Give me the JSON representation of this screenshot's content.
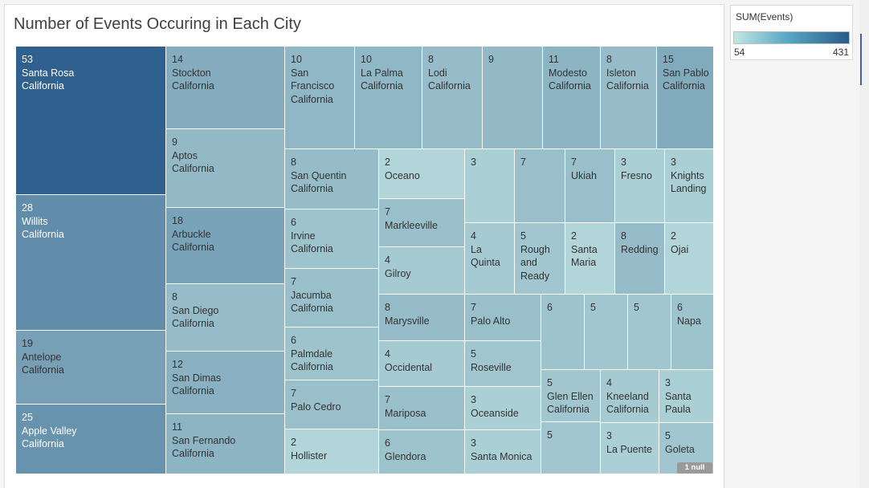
{
  "chart_data": {
    "type": "treemap",
    "title": "Number of Events Occuring in Each City",
    "legend": {
      "title": "SUM(Events)",
      "min_label": "54",
      "max_label": "431",
      "min": 54,
      "max": 431,
      "color_low": "#c4e6e4",
      "color_high": "#2b5c8a",
      "placement": "top-right"
    },
    "null_badge": "1 null",
    "tiles": [
      {
        "value": 53,
        "city": "Santa Rosa",
        "state": "California"
      },
      {
        "value": 28,
        "city": "Willits",
        "state": "California"
      },
      {
        "value": 19,
        "city": "Antelope",
        "state": "California"
      },
      {
        "value": 25,
        "city": "Apple Valley",
        "state": "California"
      },
      {
        "value": 14,
        "city": "Stockton",
        "state": "California"
      },
      {
        "value": 9,
        "city": "Aptos",
        "state": "California"
      },
      {
        "value": 18,
        "city": "Arbuckle",
        "state": "California"
      },
      {
        "value": 8,
        "city": "San Diego",
        "state": "California"
      },
      {
        "value": 12,
        "city": "San Dimas",
        "state": "California"
      },
      {
        "value": 11,
        "city": "San Fernando",
        "state": "California"
      },
      {
        "value": 10,
        "city": "San Francisco",
        "state": "California"
      },
      {
        "value": 10,
        "city": "La Palma",
        "state": "California"
      },
      {
        "value": 8,
        "city": "Lodi",
        "state": "California"
      },
      {
        "value": 9,
        "city": "",
        "state": ""
      },
      {
        "value": 11,
        "city": "Modesto",
        "state": "California"
      },
      {
        "value": 8,
        "city": "Isleton",
        "state": "California"
      },
      {
        "value": 15,
        "city": "San Pablo",
        "state": "California"
      },
      {
        "value": 8,
        "city": "San Quentin",
        "state": "California"
      },
      {
        "value": 6,
        "city": "Irvine",
        "state": "California"
      },
      {
        "value": 7,
        "city": "Jacumba",
        "state": "California"
      },
      {
        "value": 6,
        "city": "Palmdale",
        "state": "California"
      },
      {
        "value": 7,
        "city": "Palo Cedro",
        "state": ""
      },
      {
        "value": 2,
        "city": "Hollister",
        "state": ""
      },
      {
        "value": 2,
        "city": "Oceano",
        "state": ""
      },
      {
        "value": 7,
        "city": "Markleeville",
        "state": ""
      },
      {
        "value": 4,
        "city": "Gilroy",
        "state": ""
      },
      {
        "value": 8,
        "city": "Marysville",
        "state": ""
      },
      {
        "value": 4,
        "city": "Occidental",
        "state": ""
      },
      {
        "value": 7,
        "city": "Mariposa",
        "state": ""
      },
      {
        "value": 6,
        "city": "Glendora",
        "state": ""
      },
      {
        "value": 3,
        "city": "",
        "state": ""
      },
      {
        "value": 7,
        "city": "",
        "state": ""
      },
      {
        "value": 7,
        "city": "Ukiah",
        "state": ""
      },
      {
        "value": 3,
        "city": "Fresno",
        "state": ""
      },
      {
        "value": 3,
        "city": "Knights Landing",
        "state": ""
      },
      {
        "value": 4,
        "city": "La Quinta",
        "state": ""
      },
      {
        "value": 5,
        "city": "Rough and Ready",
        "state": ""
      },
      {
        "value": 2,
        "city": "Santa Maria",
        "state": ""
      },
      {
        "value": 8,
        "city": "Redding",
        "state": ""
      },
      {
        "value": 2,
        "city": "Ojai",
        "state": ""
      },
      {
        "value": 7,
        "city": "Palo Alto",
        "state": ""
      },
      {
        "value": 5,
        "city": "Roseville",
        "state": ""
      },
      {
        "value": 3,
        "city": "Oceanside",
        "state": ""
      },
      {
        "value": 3,
        "city": "Santa Monica",
        "state": ""
      },
      {
        "value": 6,
        "city": "",
        "state": ""
      },
      {
        "value": 5,
        "city": "",
        "state": ""
      },
      {
        "value": 5,
        "city": "",
        "state": ""
      },
      {
        "value": 6,
        "city": "Napa",
        "state": ""
      },
      {
        "value": 5,
        "city": "Glen Ellen",
        "state": "California"
      },
      {
        "value": 4,
        "city": "Kneeland",
        "state": "California"
      },
      {
        "value": 3,
        "city": "Santa Paula",
        "state": ""
      },
      {
        "value": 5,
        "city": "",
        "state": ""
      },
      {
        "value": 3,
        "city": "La Puente",
        "state": ""
      },
      {
        "value": 5,
        "city": "Goleta",
        "state": ""
      }
    ]
  }
}
